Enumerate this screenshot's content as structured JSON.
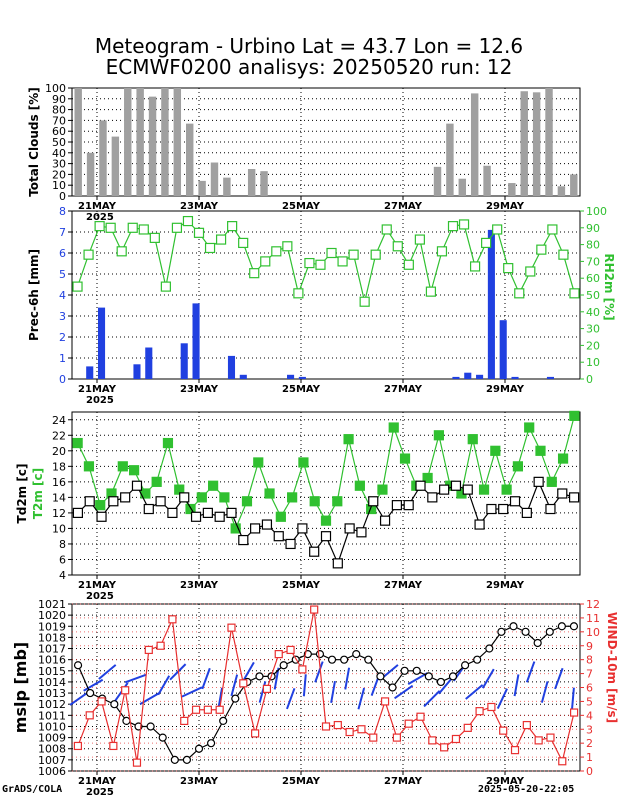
{
  "title_line1": "Meteogram - Urbino Lat = 43.7 Lon = 12.6",
  "title_line2": "ECMWF0200 analisys: 20250520 run: 12",
  "footer_left": "GrADS/COLA",
  "footer_right": "2025-05-20-22:05",
  "x_axis": {
    "tick_labels": [
      "21MAY",
      "23MAY",
      "25MAY",
      "27MAY",
      "29MAY"
    ],
    "year_label": "2025"
  },
  "chart_data": [
    {
      "type": "bar",
      "ylabel": "Total Clouds [%]",
      "ylim": [
        0,
        100
      ],
      "yticks": [
        0,
        10,
        20,
        30,
        40,
        50,
        60,
        70,
        80,
        90,
        100
      ],
      "values": [
        100,
        40,
        70,
        55,
        100,
        100,
        92,
        100,
        100,
        67,
        14,
        31,
        17,
        0,
        25,
        23,
        0,
        0,
        0,
        0,
        0,
        0,
        0,
        0,
        0,
        0,
        0,
        0,
        0,
        27,
        67,
        16,
        95,
        28,
        0,
        12,
        97,
        96,
        100,
        9,
        20
      ],
      "color": "#a0a0a0",
      "grid": true
    },
    {
      "type": "bar+line",
      "ylabel": "Prec-6h [mm]",
      "y2label": "RH2m [%]",
      "ylim": [
        0,
        8
      ],
      "yticks": [
        0,
        1,
        2,
        3,
        4,
        5,
        6,
        7,
        8
      ],
      "y2lim": [
        0,
        100
      ],
      "y2ticks": [
        0,
        10,
        20,
        30,
        40,
        50,
        60,
        70,
        80,
        90,
        100
      ],
      "bar_values": [
        0,
        0.6,
        3.4,
        0,
        0,
        0.7,
        1.5,
        0,
        0,
        1.7,
        3.6,
        0,
        0,
        1.1,
        0.2,
        0,
        0,
        0,
        0.2,
        0.1,
        0,
        0,
        0,
        0,
        0,
        0,
        0,
        0,
        0,
        0,
        0,
        0,
        0.1,
        0.3,
        0.2,
        7.1,
        2.8,
        0.1,
        0,
        0,
        0.1,
        0,
        0
      ],
      "line_values": [
        55,
        74,
        91,
        90,
        76,
        90,
        89,
        84,
        55,
        90,
        94,
        87,
        78,
        83,
        91,
        81,
        63,
        70,
        76,
        79,
        51,
        69,
        68,
        75,
        70,
        74,
        46,
        74,
        89,
        79,
        68,
        83,
        52,
        76,
        91,
        92,
        67,
        81,
        89,
        66,
        51,
        64,
        77,
        89,
        74,
        51
      ],
      "bar_color": "#2040e0",
      "line_color": "#30c030",
      "grid": true
    },
    {
      "type": "line",
      "ylabel": "Td2m [c]",
      "ylabel2": "T2m [c]",
      "ylim": [
        4,
        25
      ],
      "yticks": [
        4,
        6,
        8,
        10,
        12,
        14,
        16,
        18,
        20,
        22,
        24
      ],
      "series": [
        {
          "name": "T2m [c]",
          "color": "#30c030",
          "values": [
            21,
            18,
            13,
            14.5,
            18,
            17.5,
            14.5,
            16,
            21,
            15,
            12.5,
            14,
            15.5,
            14,
            10,
            13.5,
            18.5,
            14.5,
            11.5,
            14,
            18.5,
            13.5,
            11,
            13.5,
            21.5,
            15.5,
            12.5,
            15,
            23,
            19,
            15.5,
            16.5,
            22,
            15.5,
            14.5,
            21.5,
            15,
            20,
            15,
            18,
            23,
            20,
            16,
            19,
            24.5
          ]
        },
        {
          "name": "Td2m [c]",
          "color": "#000000",
          "values": [
            12,
            13.5,
            11.5,
            13.5,
            14,
            15.5,
            12.5,
            13.5,
            12,
            14,
            11.5,
            12,
            11.5,
            12,
            8.5,
            10,
            10.5,
            9,
            8,
            10,
            7,
            9,
            5.5,
            10,
            9.5,
            13.5,
            11,
            13,
            13,
            15.5,
            14,
            15,
            15.5,
            15,
            10.5,
            12.5,
            12.5,
            13.5,
            12,
            16,
            12.5,
            14.5,
            14
          ]
        }
      ],
      "grid": true
    },
    {
      "type": "line+barbs",
      "ylabel": "mslp [mb]",
      "y2label": "WIND-10m [m/s]",
      "ylim": [
        1006,
        1021
      ],
      "yticks": [
        1006,
        1007,
        1008,
        1009,
        1010,
        1011,
        1012,
        1013,
        1014,
        1015,
        1016,
        1017,
        1018,
        1019,
        1020,
        1021
      ],
      "y2lim": [
        0,
        12
      ],
      "y2ticks": [
        0,
        1,
        2,
        3,
        4,
        5,
        6,
        7,
        8,
        9,
        10,
        11,
        12
      ],
      "series": [
        {
          "name": "mslp [mb]",
          "color": "#000000",
          "values": [
            1015.5,
            1013,
            1012.5,
            1012,
            1010.5,
            1010,
            1010,
            1009,
            1007,
            1007,
            1008,
            1008.5,
            1010.5,
            1012.5,
            1014,
            1014.5,
            1014.5,
            1015.5,
            1016,
            1016.5,
            1016.5,
            1016,
            1016,
            1016.5,
            1016,
            1014.5,
            1013.5,
            1015,
            1015,
            1014.5,
            1014,
            1014.5,
            1015.5,
            1016,
            1017,
            1018.5,
            1019,
            1018.5,
            1017.5,
            1018.5,
            1019,
            1019
          ]
        },
        {
          "name": "WIND-10m [m/s]",
          "color": "#e83030",
          "values": [
            1.8,
            4,
            5,
            1.8,
            5.8,
            0.6,
            8.7,
            9,
            10.9,
            3.6,
            4.4,
            4.4,
            4.4,
            10.3,
            6.3,
            2.7,
            5.9,
            8.4,
            8.7,
            7.3,
            11.6,
            3.2,
            3.3,
            2.8,
            3,
            2.4,
            5,
            2.4,
            3.4,
            3.9,
            2.2,
            1.7,
            2.3,
            3.1,
            4.3,
            4.6,
            2.9,
            1.5,
            3.3,
            2.2,
            2.4,
            0.7,
            4.2
          ]
        }
      ],
      "barbs_color": "#2040e0",
      "grid": true
    }
  ]
}
